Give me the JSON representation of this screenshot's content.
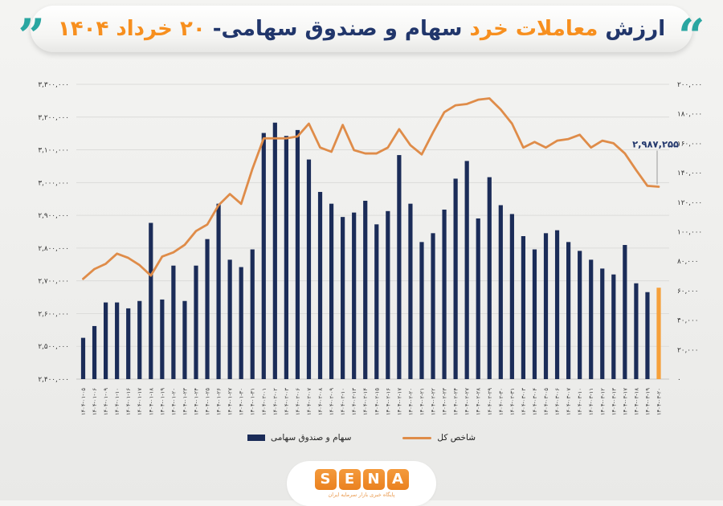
{
  "title": {
    "p1": "ارزش",
    "p2": "معاملات خرد",
    "p3": "سهام و صندوق سهامی-",
    "p4": "۲۰ خرداد ۱۴۰۴"
  },
  "colors": {
    "bar_navy": "#1b2c58",
    "bar_highlight_orange": "#f6a03a",
    "line_orange": "#df8c49",
    "title_navy": "#21366b",
    "title_orange": "#f78f1e",
    "quote_teal": "#2aa6a1",
    "gridline": "#dcdcda",
    "axis_text": "#333333"
  },
  "legend": {
    "bars_label": "سهام و صندوق سهامی",
    "line_label": "شاخص کل"
  },
  "logo": {
    "letters": [
      "S",
      "E",
      "N",
      "A"
    ],
    "tagline": "پایگاه خبری بازار سرمایه ایران"
  },
  "chart_data": {
    "type": "bar",
    "subtype": "combo bar+line, dual axis, Persian (Jalali) daily trading data",
    "title": "ارزش معاملات خرد سهام و صندوق سهامی- ۲۰ خرداد ۱۴۰۴",
    "categories": [
      "1404-01-05",
      "1404-01-06",
      "1404-01-09",
      "1404-01-10",
      "1404-01-16",
      "1404-01-17",
      "1404-01-18",
      "1404-01-19",
      "1404-01-20",
      "1404-01-23",
      "1404-01-24",
      "1404-01-25",
      "1404-01-26",
      "1404-01-27",
      "1404-01-30",
      "1404-01-31",
      "1404-02-01",
      "1404-02-02",
      "1404-02-03",
      "1404-02-06",
      "1404-02-07",
      "1404-02-08",
      "1404-02-09",
      "1404-02-10",
      "1404-02-13",
      "1404-02-14",
      "1404-02-15",
      "1404-02-16",
      "1404-02-17",
      "1404-02-20",
      "1404-02-21",
      "1404-02-22",
      "1404-02-23",
      "1404-02-24",
      "1404-02-27",
      "1404-02-28",
      "1404-02-29",
      "1404-02-30",
      "1404-02-31",
      "1404-03-03",
      "1404-03-04",
      "1404-03-05",
      "1404-03-06",
      "1404-03-07",
      "1404-03-10",
      "1404-03-11",
      "1404-03-12",
      "1404-03-13",
      "1404-03-17",
      "1404-03-18",
      "1404-03-19",
      "1404-03-20"
    ],
    "series": [
      {
        "name": "سهام و صندوق سهامی",
        "type": "bar",
        "axis": "right",
        "values": [
          28000,
          36000,
          52000,
          52000,
          48000,
          53000,
          106000,
          54000,
          77000,
          53000,
          77000,
          95000,
          119000,
          81000,
          76000,
          88000,
          167000,
          174000,
          165000,
          169000,
          149000,
          127000,
          119000,
          110000,
          113000,
          121000,
          105000,
          114000,
          152000,
          119000,
          93000,
          99000,
          115000,
          136000,
          148000,
          109000,
          137000,
          118000,
          112000,
          97000,
          88000,
          99000,
          101000,
          93000,
          87000,
          81000,
          75000,
          71000,
          91000,
          65000,
          59000,
          62000
        ],
        "highlight_last_bar": true
      },
      {
        "name": "شاخص کل",
        "type": "line",
        "axis": "left",
        "values": [
          2706000,
          2736000,
          2752000,
          2783000,
          2770000,
          2748000,
          2716000,
          2774000,
          2787000,
          2810000,
          2852000,
          2872000,
          2931000,
          2965000,
          2935000,
          3042000,
          3135000,
          3135000,
          3135000,
          3141000,
          3180000,
          3107000,
          3094000,
          3176000,
          3099000,
          3089000,
          3089000,
          3107000,
          3163000,
          3114000,
          3086000,
          3153000,
          3215000,
          3236000,
          3240000,
          3253000,
          3257000,
          3223000,
          3180000,
          3107000,
          3124000,
          3107000,
          3128000,
          3133000,
          3146000,
          3107000,
          3128000,
          3120000,
          3089000,
          3038000,
          2990000,
          2987255
        ]
      }
    ],
    "left_axis": {
      "min": 2400000,
      "max": 3300000,
      "step": 100000,
      "digits": "persian"
    },
    "right_axis": {
      "min": 0,
      "max": 200000,
      "step": 20000,
      "digits": "persian"
    },
    "annotation": {
      "value": 2987255,
      "label_persian": "۲,۹۸۷,۲۵۵"
    },
    "grid": "horizontal-only",
    "legend_position": "bottom-center"
  }
}
